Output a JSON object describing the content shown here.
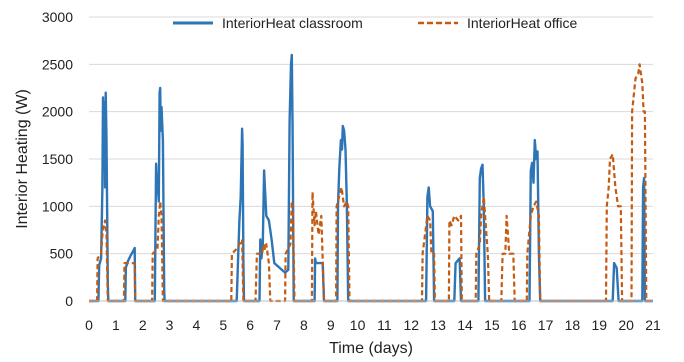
{
  "chart_data": {
    "type": "line",
    "xlabel": "Time (days)",
    "ylabel": "Interior Heating (W)",
    "xlim": [
      0,
      21
    ],
    "ylim": [
      0,
      3000
    ],
    "x_ticks": [
      0,
      1,
      2,
      3,
      4,
      5,
      6,
      7,
      8,
      9,
      10,
      11,
      12,
      13,
      14,
      15,
      16,
      17,
      18,
      19,
      20,
      21
    ],
    "x_tick_labels": [
      "0",
      "1",
      "2",
      "3",
      "4",
      "5",
      "6",
      "7",
      "8",
      "9",
      "10",
      "11",
      "12",
      "13",
      "14",
      "15",
      "16",
      "17",
      "18",
      "19",
      "20",
      "21"
    ],
    "y_ticks": [
      0,
      500,
      1000,
      1500,
      2000,
      2500,
      3000
    ],
    "y_tick_labels": [
      "0",
      "500",
      "1000",
      "1500",
      "2000",
      "2500",
      "3000"
    ],
    "legend_position": "top",
    "series": [
      {
        "name": "InteriorHeat classroom",
        "color": "#2e75b6",
        "style": "solid",
        "points": [
          [
            0,
            0
          ],
          [
            0.35,
            0
          ],
          [
            0.38,
            380
          ],
          [
            0.45,
            450
          ],
          [
            0.5,
            1200
          ],
          [
            0.52,
            2150
          ],
          [
            0.55,
            1600
          ],
          [
            0.57,
            2100
          ],
          [
            0.6,
            1200
          ],
          [
            0.62,
            2200
          ],
          [
            0.65,
            1700
          ],
          [
            0.7,
            200
          ],
          [
            0.72,
            0
          ],
          [
            1.35,
            0
          ],
          [
            1.37,
            350
          ],
          [
            1.45,
            420
          ],
          [
            1.55,
            480
          ],
          [
            1.65,
            530
          ],
          [
            1.7,
            560
          ],
          [
            1.72,
            0
          ],
          [
            2.45,
            0
          ],
          [
            2.5,
            1450
          ],
          [
            2.52,
            1300
          ],
          [
            2.55,
            1250
          ],
          [
            2.6,
            1050
          ],
          [
            2.63,
            2200
          ],
          [
            2.65,
            2250
          ],
          [
            2.67,
            1800
          ],
          [
            2.7,
            2050
          ],
          [
            2.75,
            1700
          ],
          [
            2.8,
            100
          ],
          [
            2.82,
            0
          ],
          [
            5.5,
            0
          ],
          [
            5.55,
            450
          ],
          [
            5.6,
            850
          ],
          [
            5.65,
            1100
          ],
          [
            5.7,
            1820
          ],
          [
            5.72,
            1650
          ],
          [
            5.75,
            400
          ],
          [
            5.77,
            0
          ],
          [
            6.35,
            0
          ],
          [
            6.38,
            650
          ],
          [
            6.42,
            450
          ],
          [
            6.47,
            600
          ],
          [
            6.52,
            1380
          ],
          [
            6.55,
            1200
          ],
          [
            6.6,
            900
          ],
          [
            6.7,
            850
          ],
          [
            6.8,
            650
          ],
          [
            6.9,
            400
          ],
          [
            7.1,
            350
          ],
          [
            7.3,
            300
          ],
          [
            7.42,
            330
          ],
          [
            7.47,
            1900
          ],
          [
            7.52,
            2500
          ],
          [
            7.55,
            2600
          ],
          [
            7.58,
            1800
          ],
          [
            7.62,
            0
          ],
          [
            8.4,
            0
          ],
          [
            8.42,
            450
          ],
          [
            8.45,
            400
          ],
          [
            8.7,
            400
          ],
          [
            8.75,
            0
          ],
          [
            9.25,
            0
          ],
          [
            9.27,
            1000
          ],
          [
            9.32,
            1400
          ],
          [
            9.38,
            1700
          ],
          [
            9.42,
            1600
          ],
          [
            9.45,
            1850
          ],
          [
            9.5,
            1800
          ],
          [
            9.55,
            1600
          ],
          [
            9.6,
            1050
          ],
          [
            9.65,
            0
          ],
          [
            12.55,
            0
          ],
          [
            12.6,
            1100
          ],
          [
            12.65,
            1200
          ],
          [
            12.7,
            1000
          ],
          [
            12.8,
            950
          ],
          [
            12.85,
            0
          ],
          [
            13.6,
            0
          ],
          [
            13.65,
            400
          ],
          [
            13.8,
            450
          ],
          [
            13.85,
            0
          ],
          [
            14.5,
            0
          ],
          [
            14.55,
            1300
          ],
          [
            14.6,
            1400
          ],
          [
            14.65,
            1440
          ],
          [
            14.7,
            1000
          ],
          [
            14.75,
            0
          ],
          [
            16.4,
            0
          ],
          [
            16.45,
            1380
          ],
          [
            16.5,
            1460
          ],
          [
            16.55,
            1250
          ],
          [
            16.6,
            1700
          ],
          [
            16.65,
            1500
          ],
          [
            16.7,
            1580
          ],
          [
            16.75,
            500
          ],
          [
            16.8,
            0
          ],
          [
            19.5,
            0
          ],
          [
            19.55,
            400
          ],
          [
            19.65,
            350
          ],
          [
            19.72,
            0
          ],
          [
            20.6,
            0
          ],
          [
            20.63,
            1200
          ],
          [
            20.67,
            1300
          ],
          [
            20.7,
            0
          ],
          [
            21,
            0
          ]
        ]
      },
      {
        "name": "InteriorHeat office",
        "color": "#c55a11",
        "style": "dashed",
        "points": [
          [
            0,
            0
          ],
          [
            0.3,
            0
          ],
          [
            0.32,
            450
          ],
          [
            0.45,
            500
          ],
          [
            0.5,
            700
          ],
          [
            0.55,
            800
          ],
          [
            0.6,
            850
          ],
          [
            0.65,
            700
          ],
          [
            0.7,
            0
          ],
          [
            1.3,
            0
          ],
          [
            1.32,
            400
          ],
          [
            1.7,
            400
          ],
          [
            1.72,
            0
          ],
          [
            2.35,
            0
          ],
          [
            2.37,
            500
          ],
          [
            2.55,
            550
          ],
          [
            2.6,
            900
          ],
          [
            2.65,
            1050
          ],
          [
            2.7,
            900
          ],
          [
            2.75,
            0
          ],
          [
            5.3,
            0
          ],
          [
            5.32,
            500
          ],
          [
            5.5,
            550
          ],
          [
            5.6,
            600
          ],
          [
            5.7,
            650
          ],
          [
            5.75,
            0
          ],
          [
            6.2,
            0
          ],
          [
            6.25,
            500
          ],
          [
            6.45,
            500
          ],
          [
            6.5,
            600
          ],
          [
            6.55,
            550
          ],
          [
            6.6,
            600
          ],
          [
            6.65,
            500
          ],
          [
            6.7,
            400
          ],
          [
            6.75,
            0
          ],
          [
            7.3,
            0
          ],
          [
            7.32,
            500
          ],
          [
            7.5,
            600
          ],
          [
            7.55,
            1050
          ],
          [
            7.6,
            900
          ],
          [
            7.65,
            0
          ],
          [
            8.3,
            0
          ],
          [
            8.32,
            1150
          ],
          [
            8.4,
            800
          ],
          [
            8.45,
            950
          ],
          [
            8.55,
            700
          ],
          [
            8.65,
            900
          ],
          [
            8.75,
            0
          ],
          [
            9.2,
            0
          ],
          [
            9.22,
            1000
          ],
          [
            9.4,
            1200
          ],
          [
            9.5,
            1000
          ],
          [
            9.6,
            1050
          ],
          [
            9.65,
            1000
          ],
          [
            9.7,
            0
          ],
          [
            12.4,
            0
          ],
          [
            12.42,
            500
          ],
          [
            12.6,
            900
          ],
          [
            12.7,
            850
          ],
          [
            12.75,
            500
          ],
          [
            12.85,
            500
          ],
          [
            12.88,
            0
          ],
          [
            13.4,
            0
          ],
          [
            13.42,
            850
          ],
          [
            13.5,
            800
          ],
          [
            13.6,
            900
          ],
          [
            13.75,
            850
          ],
          [
            13.85,
            900
          ],
          [
            13.88,
            0
          ],
          [
            14.4,
            0
          ],
          [
            14.42,
            500
          ],
          [
            14.55,
            600
          ],
          [
            14.6,
            900
          ],
          [
            14.7,
            1100
          ],
          [
            14.75,
            900
          ],
          [
            14.85,
            500
          ],
          [
            14.9,
            0
          ],
          [
            15.35,
            0
          ],
          [
            15.4,
            500
          ],
          [
            15.5,
            500
          ],
          [
            15.55,
            900
          ],
          [
            15.65,
            500
          ],
          [
            15.8,
            500
          ],
          [
            15.85,
            0
          ],
          [
            16.3,
            0
          ],
          [
            16.32,
            500
          ],
          [
            16.45,
            900
          ],
          [
            16.55,
            1000
          ],
          [
            16.65,
            1050
          ],
          [
            16.75,
            900
          ],
          [
            16.8,
            0
          ],
          [
            19.25,
            0
          ],
          [
            19.28,
            1000
          ],
          [
            19.35,
            1200
          ],
          [
            19.4,
            1500
          ],
          [
            19.5,
            1550
          ],
          [
            19.6,
            1200
          ],
          [
            19.7,
            1000
          ],
          [
            19.8,
            1000
          ],
          [
            19.85,
            0
          ],
          [
            20.2,
            0
          ],
          [
            20.22,
            2000
          ],
          [
            20.35,
            2350
          ],
          [
            20.45,
            2400
          ],
          [
            20.5,
            2500
          ],
          [
            20.55,
            2400
          ],
          [
            20.6,
            2300
          ],
          [
            20.65,
            2000
          ],
          [
            20.7,
            2000
          ],
          [
            20.75,
            0
          ],
          [
            21,
            0
          ]
        ]
      }
    ]
  }
}
